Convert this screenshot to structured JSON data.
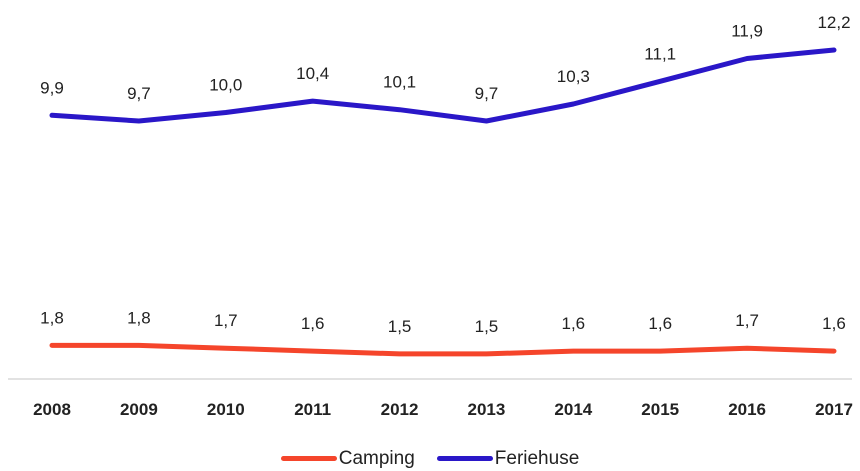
{
  "chart_data": {
    "type": "line",
    "categories": [
      "2008",
      "2009",
      "2010",
      "2011",
      "2012",
      "2013",
      "2014",
      "2015",
      "2016",
      "2017"
    ],
    "series": [
      {
        "name": "Camping",
        "color": "#f5452b",
        "values": [
          1.8,
          1.8,
          1.7,
          1.6,
          1.5,
          1.5,
          1.6,
          1.6,
          1.7,
          1.6
        ],
        "labels": [
          "1,8",
          "1,8",
          "1,7",
          "1,6",
          "1,5",
          "1,5",
          "1,6",
          "1,6",
          "1,7",
          "1,6"
        ]
      },
      {
        "name": "Feriehuse",
        "color": "#2a17c8",
        "values": [
          9.9,
          9.7,
          10.0,
          10.4,
          10.1,
          9.7,
          10.3,
          11.1,
          11.9,
          12.2
        ],
        "labels": [
          "9,9",
          "9,7",
          "10,0",
          "10,4",
          "10,1",
          "9,7",
          "10,3",
          "11,1",
          "11,9",
          "12,2"
        ]
      }
    ],
    "title": "",
    "xlabel": "",
    "ylabel": "",
    "ylim": [
      0,
      14
    ],
    "grid": false,
    "legend_position": "bottom",
    "data_labels": true
  }
}
